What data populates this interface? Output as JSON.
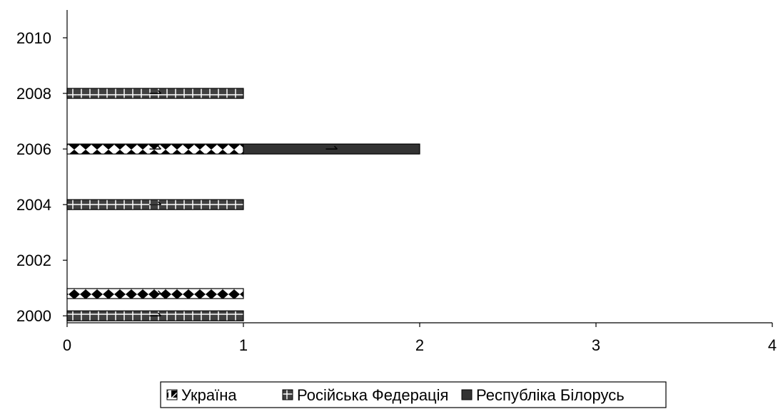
{
  "chart_data": {
    "type": "bar",
    "orientation": "horizontal",
    "stacked": true,
    "title": "",
    "xlabel": "",
    "ylabel": "",
    "xlim": [
      0,
      4
    ],
    "x_ticks": [
      "0",
      "1",
      "2",
      "3",
      "4"
    ],
    "y_ticks": [
      "2000",
      "2002",
      "2004",
      "2006",
      "2008",
      "2010"
    ],
    "ylim": [
      1999.75,
      2011
    ],
    "grid": false,
    "legend_position": "bottom",
    "series": [
      {
        "name": "Україна",
        "pattern": "diamonds",
        "color": "#000000",
        "points": [
          {
            "y": 2000.8,
            "x": 1
          },
          {
            "y": 2006,
            "x": 1
          }
        ]
      },
      {
        "name": "Російська Федерація",
        "pattern": "grid",
        "color": "#404040",
        "points": [
          {
            "y": 2000,
            "x": 1
          },
          {
            "y": 2004,
            "x": 1
          },
          {
            "y": 2008,
            "x": 1
          }
        ]
      },
      {
        "name": "Республіка Білорусь",
        "pattern": "solid",
        "color": "#333333",
        "points": [
          {
            "y": 2006,
            "x": 1
          }
        ]
      }
    ]
  }
}
